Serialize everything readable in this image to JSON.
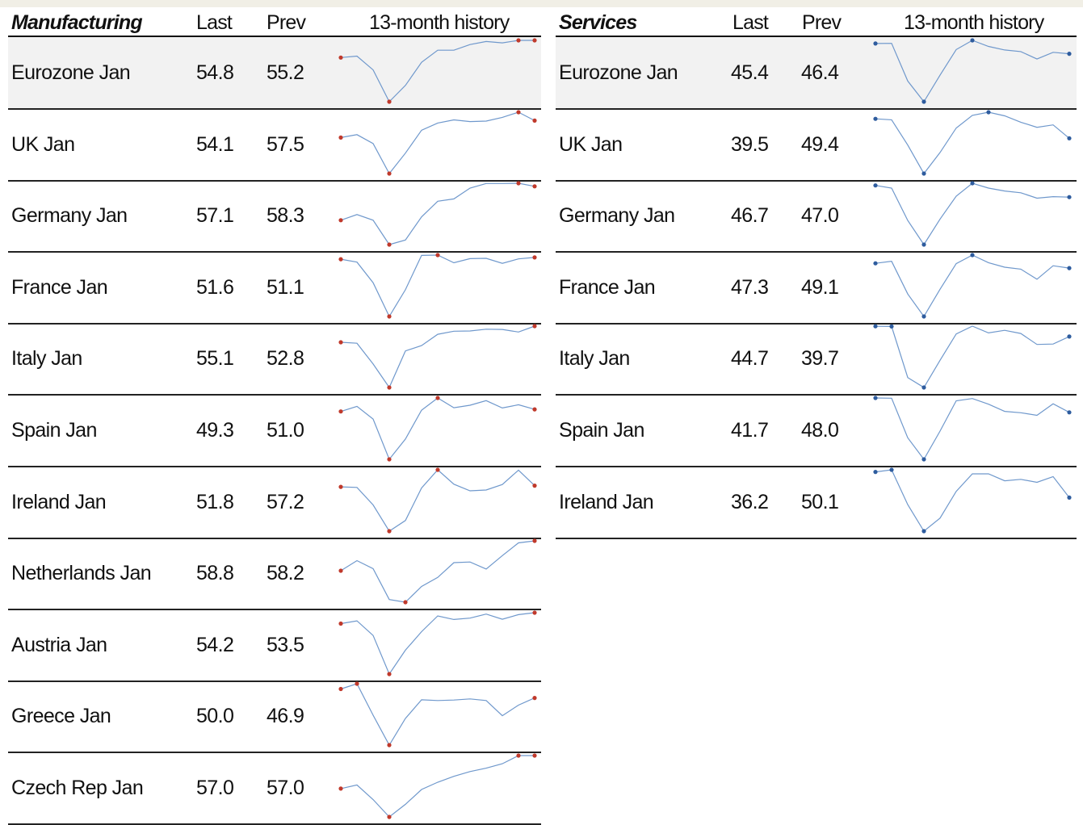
{
  "colors": {
    "line": "#6f98cc",
    "marker_manufacturing": "#c0392b",
    "marker_services": "#2e5c9e",
    "shade": "#f2f2f2"
  },
  "manufacturing": {
    "title": "Manufacturing",
    "col_last": "Last",
    "col_prev": "Prev",
    "col_history": "13-month history",
    "rows": [
      {
        "name": "Eurozone Jan",
        "last": "54.8",
        "prev": "55.2"
      },
      {
        "name": "UK Jan",
        "last": "54.1",
        "prev": "57.5"
      },
      {
        "name": "Germany Jan",
        "last": "57.1",
        "prev": "58.3"
      },
      {
        "name": "France Jan",
        "last": "51.6",
        "prev": "51.1"
      },
      {
        "name": "Italy Jan",
        "last": "55.1",
        "prev": "52.8"
      },
      {
        "name": "Spain Jan",
        "last": "49.3",
        "prev": "51.0"
      },
      {
        "name": "Ireland Jan",
        "last": "51.8",
        "prev": "57.2"
      },
      {
        "name": "Netherlands Jan",
        "last": "58.8",
        "prev": "58.2"
      },
      {
        "name": "Austria Jan",
        "last": "54.2",
        "prev": "53.5"
      },
      {
        "name": "Greece Jan",
        "last": "50.0",
        "prev": "46.9"
      },
      {
        "name": "Czech Rep Jan",
        "last": "57.0",
        "prev": "57.0"
      }
    ]
  },
  "services": {
    "title": "Services",
    "col_last": "Last",
    "col_prev": "Prev",
    "col_history": "13-month history",
    "rows": [
      {
        "name": "Eurozone Jan",
        "last": "45.4",
        "prev": "46.4"
      },
      {
        "name": "UK Jan",
        "last": "39.5",
        "prev": "49.4"
      },
      {
        "name": "Germany Jan",
        "last": "46.7",
        "prev": "47.0"
      },
      {
        "name": "France Jan",
        "last": "47.3",
        "prev": "49.1"
      },
      {
        "name": "Italy Jan",
        "last": "44.7",
        "prev": "39.7"
      },
      {
        "name": "Spain Jan",
        "last": "41.7",
        "prev": "48.0"
      },
      {
        "name": "Ireland Jan",
        "last": "36.2",
        "prev": "50.1"
      }
    ]
  },
  "chart_data": {
    "type": "line",
    "manufacturing": [
      {
        "name": "Eurozone Jan",
        "values": [
          49.1,
          49.6,
          44.7,
          33.4,
          39.2,
          47.4,
          51.7,
          51.7,
          53.7,
          54.8,
          54.3,
          55.2,
          55.2
        ],
        "markers": [
          0,
          3,
          11,
          12
        ]
      },
      {
        "name": "UK Jan",
        "values": [
          47.2,
          48.4,
          44.8,
          32.6,
          40.9,
          50.2,
          53.1,
          54.4,
          53.7,
          53.9,
          55.4,
          57.5,
          54.1
        ],
        "markers": [
          0,
          3,
          11,
          12
        ]
      },
      {
        "name": "Germany Jan",
        "values": [
          43.9,
          46.1,
          43.9,
          34.4,
          36.2,
          45.2,
          51.3,
          52.2,
          56.4,
          58.2,
          58.2,
          58.3,
          57.1
        ],
        "markers": [
          0,
          3,
          11,
          12
        ]
      },
      {
        "name": "France Jan",
        "values": [
          51.0,
          50.0,
          43.0,
          31.5,
          40.6,
          52.3,
          52.4,
          49.8,
          51.2,
          51.3,
          49.6,
          51.1,
          51.6
        ],
        "markers": [
          0,
          3,
          6,
          12
        ]
      },
      {
        "name": "Italy Jan",
        "values": [
          48.8,
          48.4,
          40.3,
          31.1,
          45.4,
          47.5,
          51.9,
          53.1,
          53.2,
          53.9,
          53.8,
          52.8,
          55.1
        ],
        "markers": [
          0,
          3,
          12
        ]
      },
      {
        "name": "Spain Jan",
        "values": [
          48.5,
          50.4,
          45.7,
          30.8,
          38.3,
          49.0,
          53.5,
          49.9,
          50.8,
          52.5,
          49.8,
          51.0,
          49.3
        ],
        "markers": [
          0,
          3,
          6,
          12
        ]
      },
      {
        "name": "Ireland Jan",
        "values": [
          51.4,
          51.2,
          45.1,
          36.0,
          39.7,
          51.0,
          57.3,
          52.3,
          50.0,
          50.3,
          52.2,
          57.2,
          51.8
        ],
        "markers": [
          0,
          3,
          6,
          12
        ]
      },
      {
        "name": "Netherlands Jan",
        "values": [
          49.9,
          52.9,
          50.5,
          41.3,
          40.5,
          45.2,
          47.9,
          52.3,
          52.5,
          50.4,
          54.4,
          58.2,
          58.8
        ],
        "markers": [
          0,
          4,
          12
        ]
      },
      {
        "name": "Austria Jan",
        "values": [
          50.2,
          51.2,
          45.8,
          31.6,
          40.4,
          47.2,
          53.0,
          51.7,
          52.2,
          53.7,
          51.8,
          53.5,
          54.2
        ],
        "markers": [
          0,
          3,
          12
        ]
      },
      {
        "name": "Greece Jan",
        "values": [
          53.9,
          56.2,
          42.5,
          29.5,
          41.1,
          49.2,
          48.9,
          49.1,
          49.6,
          48.9,
          42.3,
          46.9,
          50.0
        ],
        "markers": [
          0,
          1,
          3,
          12
        ]
      },
      {
        "name": "Czech Rep Jan",
        "values": [
          45.2,
          46.5,
          41.3,
          35.1,
          39.6,
          44.9,
          47.5,
          49.6,
          51.3,
          52.5,
          54.1,
          57.0,
          57.0
        ],
        "markers": [
          0,
          3,
          11,
          12
        ]
      }
    ],
    "services": [
      {
        "name": "Eurozone Jan",
        "values": [
          52.5,
          52.6,
          26.4,
          12.0,
          30.5,
          48.3,
          54.7,
          50.5,
          48.0,
          46.9,
          41.7,
          46.4,
          45.4
        ],
        "markers": [
          0,
          3,
          6,
          12
        ]
      },
      {
        "name": "UK Jan",
        "values": [
          53.9,
          53.2,
          34.5,
          13.4,
          29.0,
          47.1,
          56.5,
          58.8,
          56.1,
          51.4,
          47.6,
          49.4,
          39.5
        ],
        "markers": [
          0,
          3,
          7,
          12
        ]
      },
      {
        "name": "Germany Jan",
        "values": [
          54.2,
          52.5,
          31.7,
          16.2,
          32.6,
          47.3,
          55.6,
          52.5,
          50.6,
          49.5,
          46.0,
          47.0,
          46.7
        ],
        "markers": [
          0,
          3,
          6,
          12
        ]
      },
      {
        "name": "France Jan",
        "values": [
          51.0,
          52.5,
          27.4,
          10.2,
          31.1,
          50.7,
          57.3,
          51.5,
          48.0,
          46.5,
          38.8,
          49.1,
          47.3
        ],
        "markers": [
          0,
          3,
          6,
          12
        ]
      },
      {
        "name": "Italy Jan",
        "values": [
          51.5,
          51.4,
          17.4,
          10.8,
          28.9,
          46.4,
          51.6,
          47.1,
          48.8,
          46.7,
          39.4,
          39.7,
          44.7
        ],
        "markers": [
          0,
          1,
          3,
          12
        ]
      },
      {
        "name": "Spain Jan",
        "values": [
          52.3,
          52.1,
          23.0,
          7.1,
          27.9,
          50.2,
          51.9,
          47.7,
          42.4,
          41.4,
          39.5,
          48.0,
          41.7
        ],
        "markers": [
          0,
          3,
          12
        ]
      },
      {
        "name": "Ireland Jan",
        "values": [
          53.2,
          54.6,
          31.5,
          13.9,
          22.6,
          40.3,
          51.9,
          51.9,
          47.3,
          48.3,
          46.3,
          50.1,
          36.2
        ],
        "markers": [
          0,
          1,
          3,
          12
        ]
      }
    ]
  }
}
